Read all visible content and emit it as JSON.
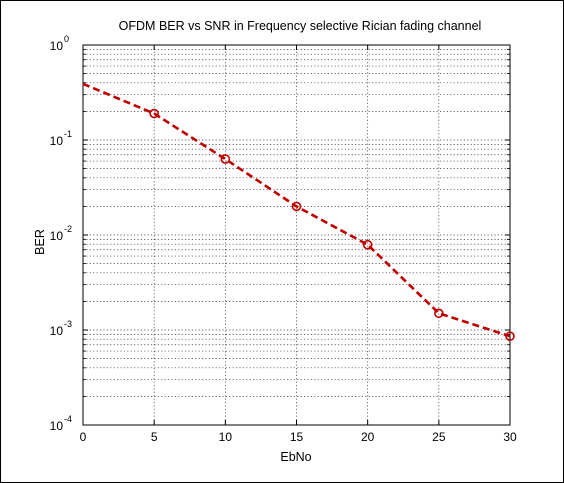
{
  "chart_data": {
    "type": "line",
    "title": "OFDM BER vs SNR in Frequency selective  Rician  fading channel",
    "xlabel": "EbNo",
    "ylabel": "BER",
    "xlim": [
      0,
      30
    ],
    "ylim": [
      0.0001,
      1
    ],
    "yscale": "log",
    "grid": true,
    "x_ticks": [
      "0",
      "5",
      "10",
      "15",
      "20",
      "25",
      "30"
    ],
    "y_tick_exponents": [
      "0",
      "-1",
      "-2",
      "-3",
      "-4"
    ],
    "y_tick_base": "10",
    "series": [
      {
        "x": [
          0,
          5,
          10,
          15,
          20,
          25,
          30
        ],
        "values": [
          0.39,
          0.19,
          0.063,
          0.02,
          0.0079,
          0.0015,
          0.00086
        ],
        "color": "#c00000",
        "style": "dashed",
        "marker": "circle",
        "marker_x": [
          5,
          10,
          15,
          20,
          25,
          30
        ]
      }
    ]
  }
}
